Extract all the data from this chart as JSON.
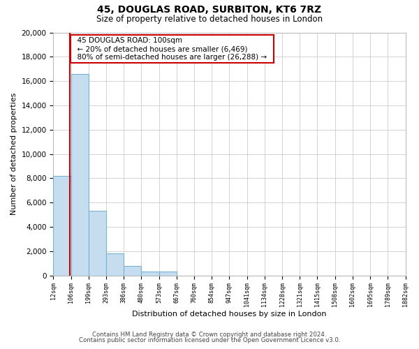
{
  "title": "45, DOUGLAS ROAD, SURBITON, KT6 7RZ",
  "subtitle": "Size of property relative to detached houses in London",
  "xlabel": "Distribution of detached houses by size in London",
  "ylabel": "Number of detached properties",
  "bin_labels": [
    "12sqm",
    "106sqm",
    "199sqm",
    "293sqm",
    "386sqm",
    "480sqm",
    "573sqm",
    "667sqm",
    "760sqm",
    "854sqm",
    "947sqm",
    "1041sqm",
    "1134sqm",
    "1228sqm",
    "1321sqm",
    "1415sqm",
    "1508sqm",
    "1602sqm",
    "1695sqm",
    "1789sqm",
    "1882sqm"
  ],
  "bar_heights": [
    8200,
    16600,
    5300,
    1800,
    800,
    300,
    300,
    0,
    0,
    0,
    0,
    0,
    0,
    0,
    0,
    0,
    0,
    0,
    0,
    0
  ],
  "bar_color": "#c5ddef",
  "bar_edge_color": "#7ab3d0",
  "property_line_color": "#cc0000",
  "annotation_title": "45 DOUGLAS ROAD: 100sqm",
  "annotation_line1": "← 20% of detached houses are smaller (6,469)",
  "annotation_line2": "80% of semi-detached houses are larger (26,288) →",
  "annotation_box_facecolor": "#ffffff",
  "annotation_box_edgecolor": "#cc0000",
  "ylim": [
    0,
    20000
  ],
  "yticks": [
    0,
    2000,
    4000,
    6000,
    8000,
    10000,
    12000,
    14000,
    16000,
    18000,
    20000
  ],
  "footnote1": "Contains HM Land Registry data © Crown copyright and database right 2024.",
  "footnote2": "Contains public sector information licensed under the Open Government Licence v3.0.",
  "fig_facecolor": "#ffffff",
  "plot_facecolor": "#ffffff",
  "grid_color": "#cccccc"
}
